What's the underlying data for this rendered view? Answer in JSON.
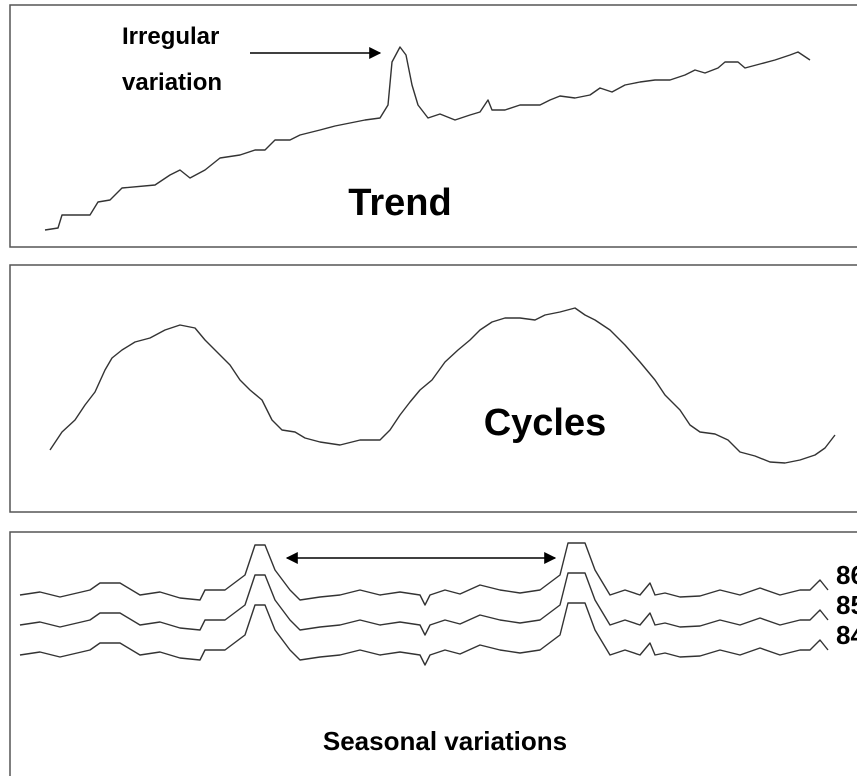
{
  "panels": [
    {
      "label": "Trend",
      "annotation": [
        "Irregular",
        "variation"
      ]
    },
    {
      "label": "Cycles"
    },
    {
      "label": "Seasonal variations",
      "series_labels": [
        "86",
        "85",
        "84"
      ]
    }
  ]
}
